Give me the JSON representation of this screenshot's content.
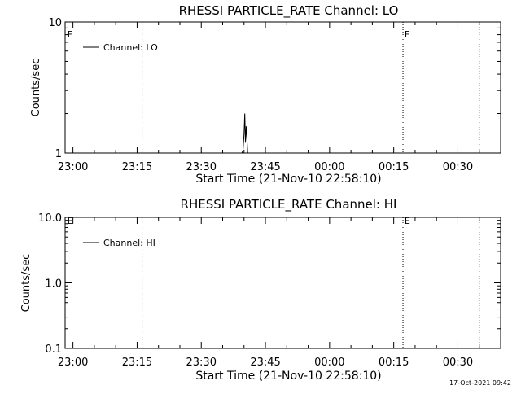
{
  "chart_data": [
    {
      "type": "line",
      "title": "RHESSI PARTICLE_RATE Channel: LO",
      "xlabel": "Start Time (21-Nov-10 22:58:10)",
      "ylabel": "Counts/sec",
      "yscale": "log",
      "xlim": [
        "22:58:10",
        "00:40:00"
      ],
      "ylim": [
        1,
        10
      ],
      "x_ticks": [
        "23:00",
        "23:15",
        "23:30",
        "23:45",
        "00:00",
        "00:15",
        "00:30"
      ],
      "y_ticks": [
        "1",
        "10"
      ],
      "vlines": [
        "23:16:10",
        "00:17:10",
        "00:35:00"
      ],
      "markers": [
        {
          "label": "E",
          "time": "22:58:30"
        },
        {
          "label": "E",
          "time": "00:17:20"
        }
      ],
      "legend": "top-left",
      "series": [
        {
          "name": "Channel: LO",
          "x": [
            "23:39:30",
            "23:39:45",
            "23:40:00",
            "23:40:10",
            "23:40:20",
            "23:40:30",
            "23:40:40",
            "23:40:50"
          ],
          "y": [
            1,
            1.05,
            1.4,
            2.0,
            1.2,
            1.6,
            1.3,
            1
          ]
        }
      ]
    },
    {
      "type": "line",
      "title": "RHESSI PARTICLE_RATE Channel: HI",
      "xlabel": "Start Time (21-Nov-10 22:58:10)",
      "ylabel": "Counts/sec",
      "yscale": "log",
      "xlim": [
        "22:58:10",
        "00:40:00"
      ],
      "ylim": [
        0.1,
        10
      ],
      "x_ticks": [
        "23:00",
        "23:15",
        "23:30",
        "23:45",
        "00:00",
        "00:15",
        "00:30"
      ],
      "y_ticks": [
        "0.1",
        "1.0",
        "10.0"
      ],
      "vlines": [
        "23:16:10",
        "00:17:10",
        "00:35:00"
      ],
      "markers": [
        {
          "label": "E",
          "time": "22:58:30"
        },
        {
          "label": "E",
          "time": "00:17:20"
        }
      ],
      "legend": "top-left",
      "series": [
        {
          "name": "Channel: HI",
          "x": [],
          "y": []
        }
      ]
    }
  ],
  "footer": {
    "timestamp": "17-Oct-2021 09:42"
  }
}
